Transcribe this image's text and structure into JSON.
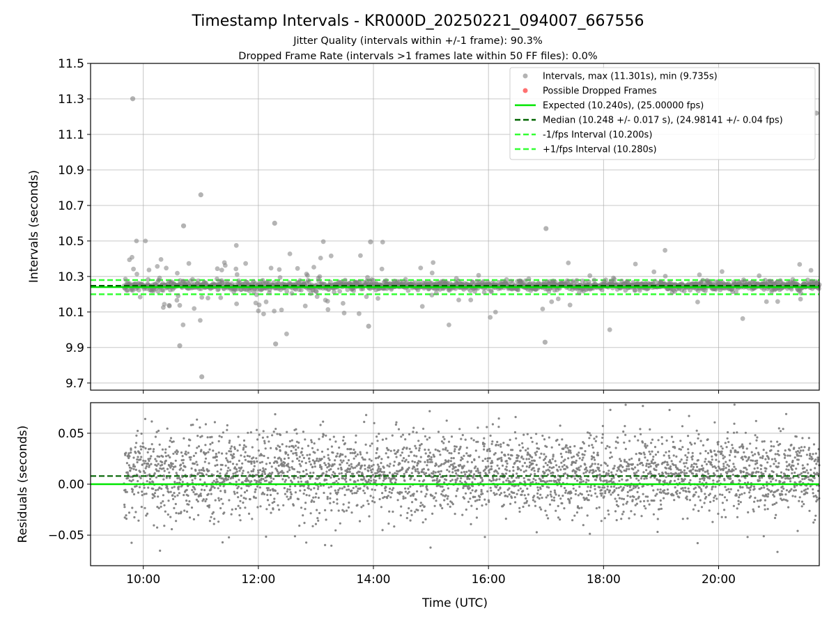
{
  "figure": {
    "title": "Timestamp Intervals - KR000D_20250221_094007_667556",
    "subtitle_1": "Jitter Quality (intervals within +/-1 frame): 90.3%",
    "subtitle_2": "Dropped Frame Rate (intervals >1 frames late within 50 FF files): 0.0%",
    "xlabel": "Time (UTC)"
  },
  "colors": {
    "points": "#808080",
    "dropped": "#ff4d4d",
    "expected": "#00e600",
    "median": "#006400",
    "interval": "#33ff33",
    "grid": "#b0b0b0"
  },
  "chart_data": [
    {
      "type": "scatter",
      "panel": "intervals",
      "ylabel": "Intervals (seconds)",
      "xlim": [
        "09:05",
        "21:45"
      ],
      "ylim": [
        9.66,
        11.5
      ],
      "x_ticks": [
        "10:00",
        "12:00",
        "14:00",
        "16:00",
        "18:00",
        "20:00"
      ],
      "y_ticks": [
        "9.7",
        "9.9",
        "10.1",
        "10.3",
        "10.5",
        "10.7",
        "10.9",
        "11.1",
        "11.3",
        "11.5"
      ],
      "grid": true,
      "legend_position": "top-right",
      "legend": [
        "Intervals, max (11.301s), min (9.735s)",
        "Possible Dropped Frames",
        "Expected (10.240s), (25.00000 fps)",
        "Median (10.248 +/- 0.017 s), (24.98141 +/- 0.04 fps)",
        "-1/fps Interval (10.200s)",
        "+1/fps Interval (10.280s)"
      ],
      "reference_lines": {
        "expected": 10.24,
        "median": 10.248,
        "minus_1_fps": 10.2,
        "plus_1_fps": 10.28
      },
      "series": [
        {
          "name": "Intervals, max (11.301s), min (9.735s)",
          "time_start": "09:40",
          "time_end": "21:45",
          "count": 4250,
          "median": 10.248,
          "std": 0.017,
          "max": 11.301,
          "min": 9.735,
          "notable_points": [
            {
              "x": "09:49",
              "y": 11.301
            },
            {
              "x": "10:42",
              "y": 10.585
            },
            {
              "x": "11:00",
              "y": 10.76
            },
            {
              "x": "11:01",
              "y": 9.735
            },
            {
              "x": "10:38",
              "y": 9.91
            },
            {
              "x": "12:17",
              "y": 10.6
            },
            {
              "x": "12:18",
              "y": 9.92
            },
            {
              "x": "17:00",
              "y": 10.57
            },
            {
              "x": "16:59",
              "y": 9.93
            },
            {
              "x": "13:57",
              "y": 10.495
            },
            {
              "x": "13:55",
              "y": 10.02
            },
            {
              "x": "21:42",
              "y": 11.22
            }
          ]
        },
        {
          "name": "Possible Dropped Frames",
          "notable_points": []
        }
      ]
    },
    {
      "type": "scatter",
      "panel": "residuals",
      "ylabel": "Residuals (seconds)",
      "xlim": [
        "09:05",
        "21:45"
      ],
      "ylim": [
        -0.08,
        0.08
      ],
      "y_ticks": [
        "−0.05",
        "0.00",
        "0.05"
      ],
      "x_ticks": [
        "10:00",
        "12:00",
        "14:00",
        "16:00",
        "18:00",
        "20:00"
      ],
      "grid": true,
      "reference_lines": {
        "expected": 0.0,
        "median": 0.008
      },
      "series": [
        {
          "name": "",
          "time_start": "09:40",
          "time_end": "21:45",
          "count": 3400,
          "center": 0.01,
          "std": 0.02
        }
      ]
    }
  ]
}
